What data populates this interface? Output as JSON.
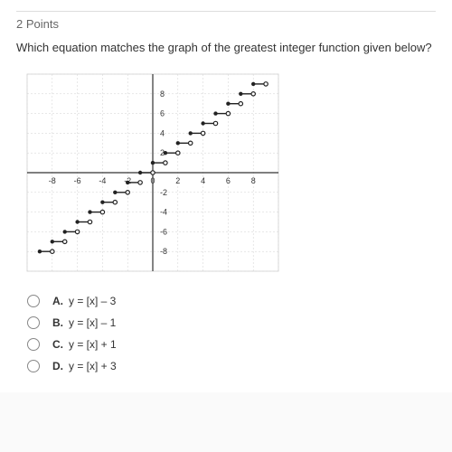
{
  "header": {
    "points": "2 Points"
  },
  "question": {
    "text": "Which equation matches the graph of the greatest integer function given below?"
  },
  "graph": {
    "type": "step-function",
    "frame_color": "#d9d9d9",
    "grid_color": "#d0d0d0",
    "axis_color": "#333333",
    "step_color": "#222222",
    "background": "#ffffff",
    "tick_fontsize": 9,
    "xlim": [
      -10,
      10
    ],
    "ylim": [
      -10,
      10
    ],
    "grid_step_x": 2,
    "grid_step_y": 2,
    "xticks": [
      -8,
      -6,
      -4,
      -2,
      0,
      2,
      4,
      6,
      8
    ],
    "yticks": [
      -8,
      -6,
      -4,
      -2,
      2,
      4,
      6,
      8
    ],
    "step_width": 1,
    "y_offset": 1,
    "x_start": -9,
    "x_end": 8,
    "dot_r": 2.2
  },
  "options": [
    {
      "letter": "A.",
      "text": "y = [x] – 3"
    },
    {
      "letter": "B.",
      "text": "y = [x] – 1"
    },
    {
      "letter": "C.",
      "text": "y = [x] + 1"
    },
    {
      "letter": "D.",
      "text": "y = [x] + 3"
    }
  ]
}
